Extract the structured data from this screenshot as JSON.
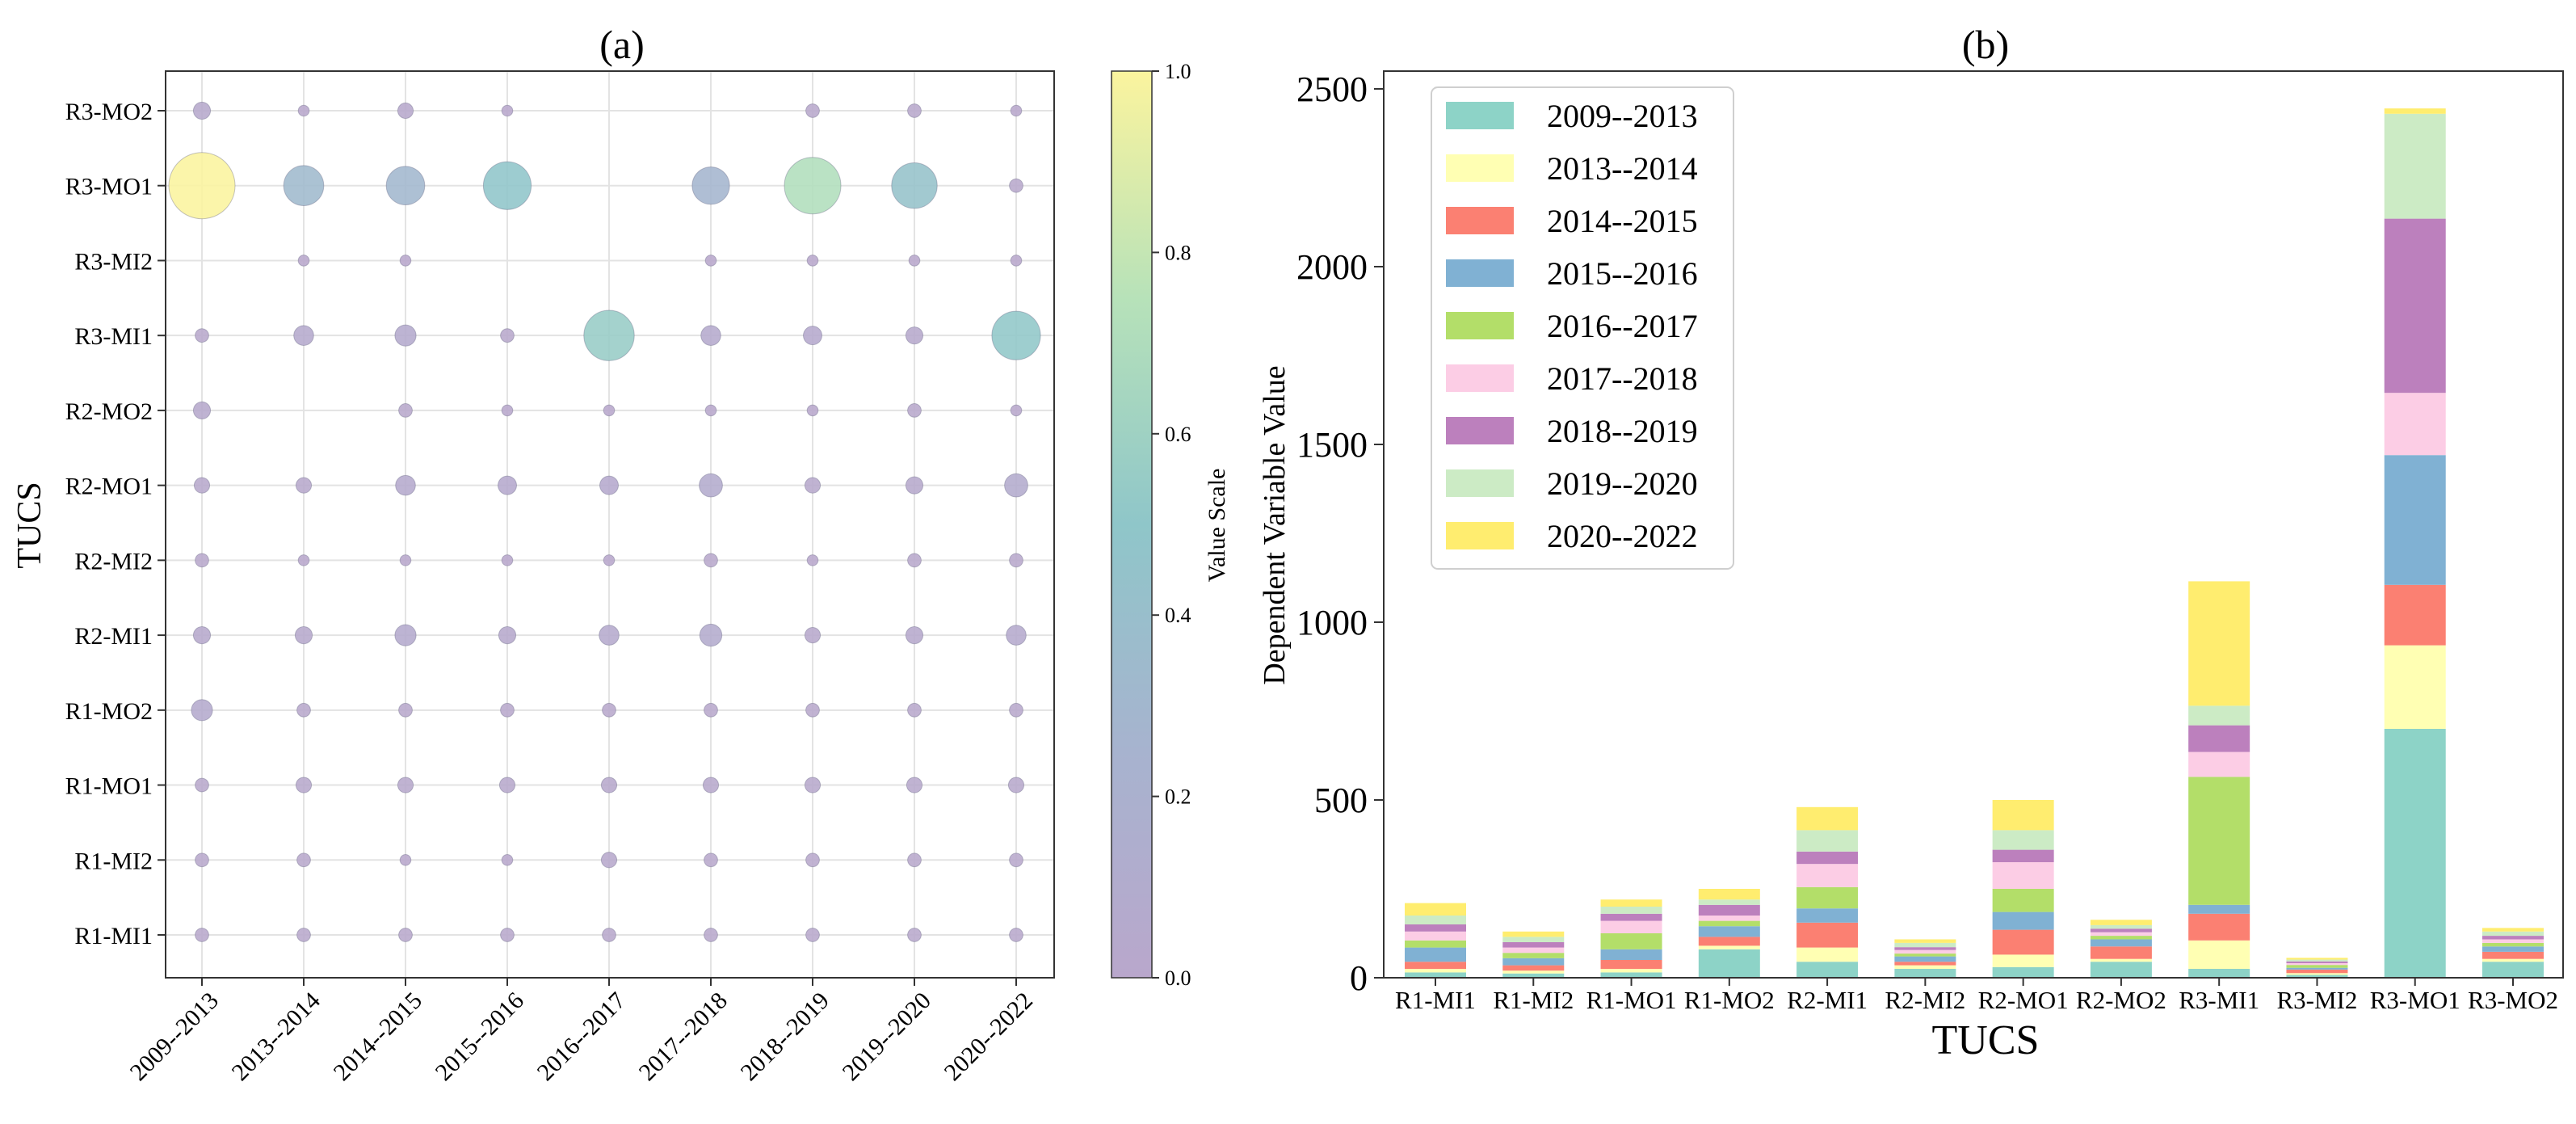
{
  "chart_data": [
    {
      "id": "a",
      "type": "scatter",
      "title": "(a)",
      "xlabel": "",
      "ylabel": "TUCS",
      "x_categories": [
        "2009--2013",
        "2013--2014",
        "2014--2015",
        "2015--2016",
        "2016--2017",
        "2017--2018",
        "2018--2019",
        "2019--2020",
        "2020--2022"
      ],
      "y_categories": [
        "R1-MI1",
        "R1-MI2",
        "R1-MO1",
        "R1-MO2",
        "R2-MI1",
        "R2-MI2",
        "R2-MO1",
        "R2-MO2",
        "R3-MI1",
        "R3-MI2",
        "R3-MO1",
        "R3-MO2"
      ],
      "values": [
        [
          0.02,
          0.02,
          0.02,
          0.02,
          0.02,
          0.02,
          0.02,
          0.02,
          0.02
        ],
        [
          0.02,
          0.02,
          0.01,
          0.01,
          0.03,
          0.02,
          0.02,
          0.02,
          0.02
        ],
        [
          0.02,
          0.03,
          0.03,
          0.03,
          0.03,
          0.03,
          0.03,
          0.03,
          0.03
        ],
        [
          0.07,
          0.02,
          0.02,
          0.02,
          0.02,
          0.02,
          0.02,
          0.02,
          0.02
        ],
        [
          0.04,
          0.04,
          0.07,
          0.04,
          0.06,
          0.08,
          0.03,
          0.04,
          0.06
        ],
        [
          0.02,
          0.01,
          0.01,
          0.01,
          0.01,
          0.02,
          0.01,
          0.02,
          0.02
        ],
        [
          0.03,
          0.03,
          0.06,
          0.05,
          0.05,
          0.09,
          0.03,
          0.04,
          0.09
        ],
        [
          0.04,
          0.0,
          0.02,
          0.01,
          0.01,
          0.01,
          0.01,
          0.02,
          0.01
        ],
        [
          0.02,
          0.06,
          0.07,
          0.02,
          0.55,
          0.06,
          0.05,
          0.04,
          0.51
        ],
        [
          0.0,
          0.01,
          0.01,
          0.0,
          0.0,
          0.01,
          0.01,
          0.01,
          0.01
        ],
        [
          1.0,
          0.33,
          0.3,
          0.49,
          0.0,
          0.28,
          0.71,
          0.44,
          0.02
        ],
        [
          0.04,
          0.01,
          0.03,
          0.01,
          0.0,
          0.0,
          0.02,
          0.02,
          0.01
        ]
      ],
      "colorbar": {
        "label": "Value Scale",
        "ticks": [
          "0.0",
          "0.2",
          "0.4",
          "0.6",
          "0.8",
          "1.0"
        ],
        "range": [
          0,
          1
        ]
      }
    },
    {
      "id": "b",
      "type": "bar",
      "stacked": true,
      "title": "(b)",
      "xlabel": "TUCS",
      "ylabel": "Dependent Variable Value",
      "ylim": [
        0,
        2500
      ],
      "yticks": [
        "0",
        "500",
        "1000",
        "1500",
        "2000",
        "2500"
      ],
      "categories": [
        "R1-MI1",
        "R1-MI2",
        "R1-MO1",
        "R1-MO2",
        "R2-MI1",
        "R2-MI2",
        "R2-MO1",
        "R2-MO2",
        "R3-MI1",
        "R3-MI2",
        "R3-MO1",
        "R3-MO2"
      ],
      "series": [
        {
          "name": "2009--2013",
          "color": "#8dd3c7",
          "values": [
            15,
            12,
            15,
            80,
            45,
            25,
            30,
            45,
            25,
            8,
            700,
            45
          ]
        },
        {
          "name": "2013--2014",
          "color": "#ffffb3",
          "values": [
            10,
            8,
            10,
            10,
            40,
            10,
            35,
            8,
            80,
            5,
            235,
            8
          ]
        },
        {
          "name": "2014--2015",
          "color": "#fb8072",
          "values": [
            20,
            15,
            25,
            25,
            70,
            10,
            70,
            35,
            75,
            10,
            170,
            20
          ]
        },
        {
          "name": "2015--2016",
          "color": "#80b1d3",
          "values": [
            40,
            20,
            30,
            30,
            40,
            15,
            50,
            20,
            25,
            5,
            365,
            15
          ]
        },
        {
          "name": "2016--2017",
          "color": "#b3de69",
          "values": [
            20,
            15,
            45,
            15,
            60,
            8,
            65,
            10,
            360,
            8,
            0,
            10
          ]
        },
        {
          "name": "2017--2018",
          "color": "#fccde5",
          "values": [
            25,
            15,
            35,
            15,
            65,
            10,
            75,
            10,
            70,
            5,
            175,
            10
          ]
        },
        {
          "name": "2018--2019",
          "color": "#bc80bd",
          "values": [
            20,
            15,
            20,
            30,
            35,
            8,
            35,
            10,
            75,
            5,
            490,
            10
          ]
        },
        {
          "name": "2019--2020",
          "color": "#ccebc5",
          "values": [
            25,
            15,
            20,
            15,
            60,
            12,
            55,
            10,
            55,
            5,
            295,
            12
          ]
        },
        {
          "name": "2020--2022",
          "color": "#ffed6f",
          "values": [
            35,
            15,
            20,
            30,
            65,
            10,
            85,
            15,
            350,
            5,
            15,
            10
          ]
        }
      ]
    }
  ]
}
